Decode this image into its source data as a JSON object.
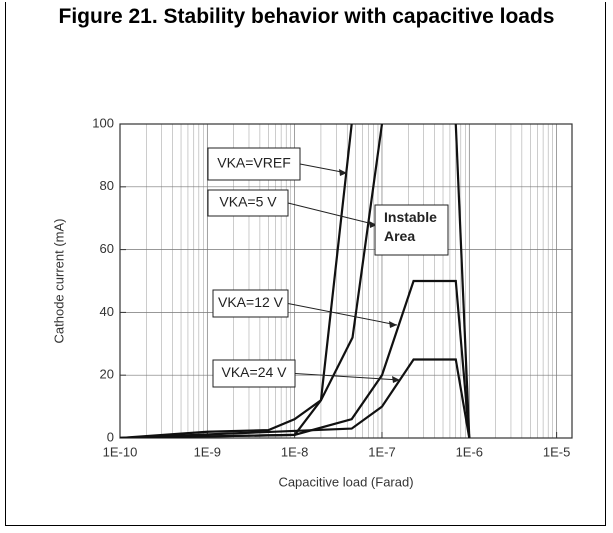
{
  "chart_data": {
    "type": "line",
    "title": "Figure 21. Stability behavior with capacitive loads",
    "xlabel": "Capacitive load (Farad)",
    "ylabel": "Cathode current (mA)",
    "xscale": "log",
    "xlim": [
      1e-10,
      1.5e-05
    ],
    "ylim": [
      0,
      100
    ],
    "xticks": [
      {
        "value": 1e-10,
        "label": "1E-10"
      },
      {
        "value": 1e-09,
        "label": "1E-9"
      },
      {
        "value": 1e-08,
        "label": "1E-8"
      },
      {
        "value": 1e-07,
        "label": "1E-7"
      },
      {
        "value": 1e-06,
        "label": "1E-6"
      },
      {
        "value": 1e-05,
        "label": "1E-5"
      }
    ],
    "yticks": [
      0,
      20,
      40,
      60,
      80,
      100
    ],
    "grid": true,
    "annotations": [
      "Instable Area"
    ],
    "series": [
      {
        "name": "VKA=VREF",
        "color": "#111111",
        "x": [
          1e-10,
          1e-09,
          5e-09,
          1e-08,
          2e-08,
          4.5e-08
        ],
        "values": [
          0,
          2,
          2.5,
          6,
          12,
          100
        ]
      },
      {
        "name": "VKA=5 V",
        "color": "#111111",
        "x": [
          1e-10,
          1e-08,
          2e-08,
          4.6e-08,
          1e-07
        ],
        "values": [
          0,
          1,
          12,
          32,
          100
        ]
      },
      {
        "name": "VKA=12 V",
        "color": "#111111",
        "x": [
          1e-10,
          1e-08,
          4.5e-08,
          1e-07,
          2.3e-07,
          7e-07,
          1e-06
        ],
        "values": [
          0,
          1,
          6,
          20,
          50,
          50,
          0
        ]
      },
      {
        "name": "VKA=24 V",
        "color": "#111111",
        "x": [
          1e-10,
          4.5e-08,
          1e-07,
          2.3e-07,
          7e-07,
          1e-06
        ],
        "values": [
          0,
          3,
          10,
          25,
          25,
          0
        ]
      },
      {
        "color": "#111111",
        "x": [
          7e-07,
          1e-06
        ],
        "values": [
          100,
          0
        ]
      }
    ]
  }
}
